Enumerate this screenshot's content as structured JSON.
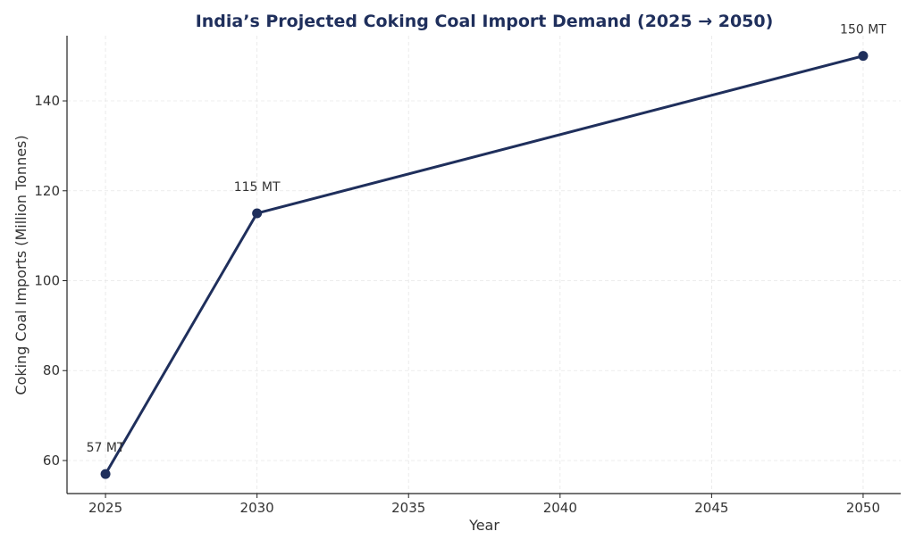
{
  "chart_data": {
    "type": "line",
    "title": "India’s Projected Coking Coal Import Demand (2025 → 2050)",
    "xlabel": "Year",
    "ylabel": "Coking Coal Imports (Million Tonnes)",
    "x": [
      2025,
      2030,
      2050
    ],
    "series": [
      {
        "name": "Coking Coal Imports",
        "values": [
          57,
          115,
          150
        ],
        "color": "#1f2f5c"
      }
    ],
    "data_labels": [
      "57 MT",
      "115 MT",
      "150 MT"
    ],
    "xlim": [
      2023.73,
      2051.24
    ],
    "ylim": [
      52.65,
      154.5
    ],
    "xticks": [
      2025,
      2030,
      2035,
      2040,
      2045,
      2050
    ],
    "yticks": [
      60,
      80,
      100,
      120,
      140
    ],
    "grid": true,
    "legend": "none"
  }
}
